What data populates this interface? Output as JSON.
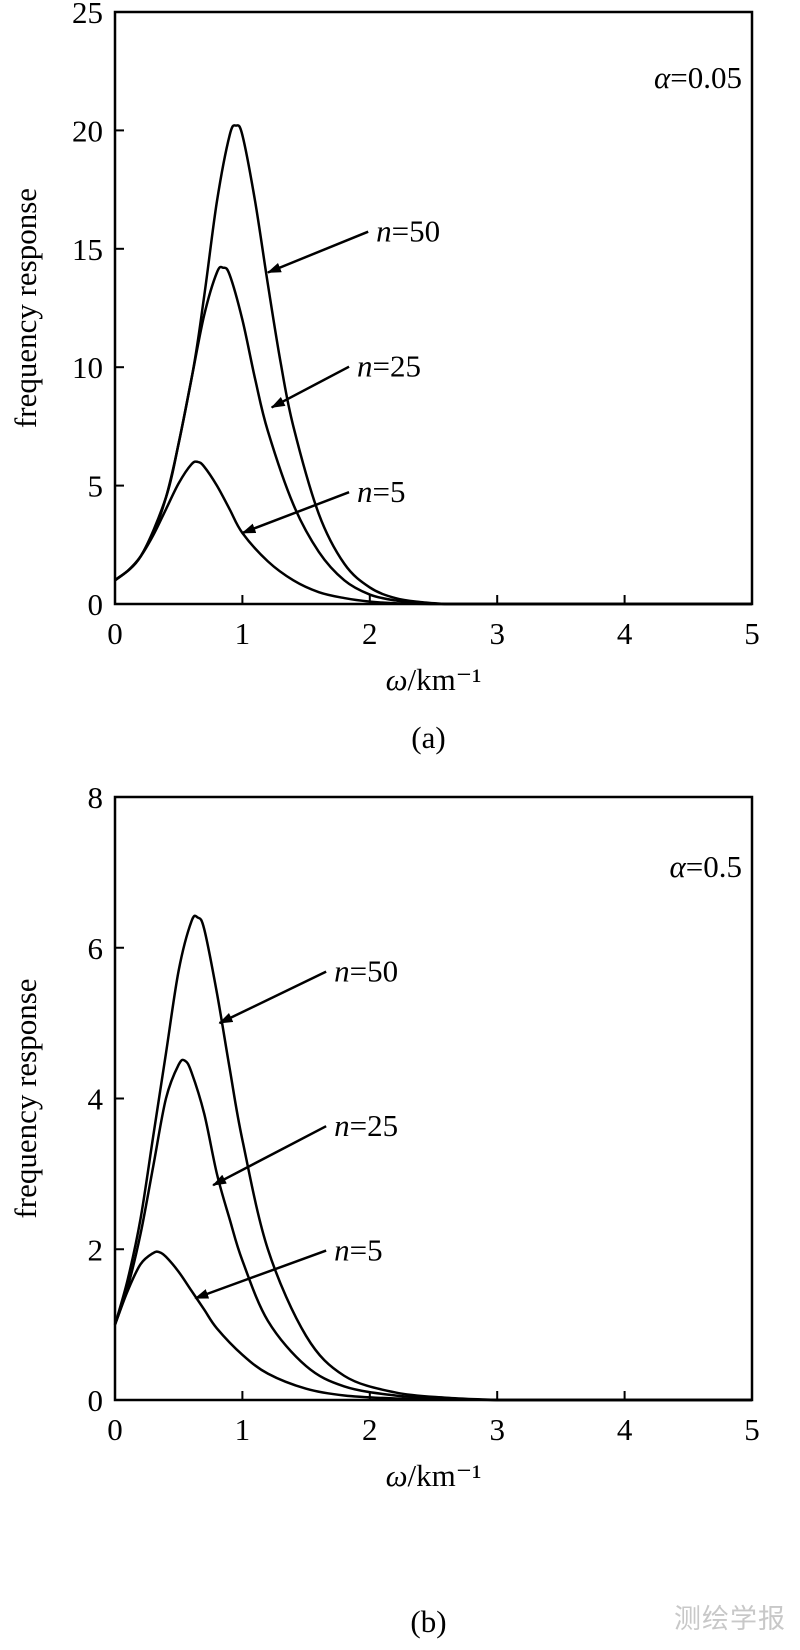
{
  "watermark": "测绘学报",
  "chart_data": [
    {
      "type": "line",
      "panel_label": "(a)",
      "annotation": "α=0.05",
      "ylabel": "frequency response",
      "xlabel": "ω/km⁻¹",
      "xlim": [
        0,
        5
      ],
      "ylim": [
        0,
        25
      ],
      "xticks": [
        "0",
        "1",
        "2",
        "3",
        "4",
        "5"
      ],
      "yticks": [
        "0",
        "5",
        "10",
        "15",
        "20",
        "25"
      ],
      "grid": false,
      "series": [
        {
          "name": "n=5",
          "x": [
            0,
            0.1,
            0.2,
            0.3,
            0.4,
            0.5,
            0.6,
            0.65,
            0.7,
            0.8,
            0.9,
            1.0,
            1.2,
            1.4,
            1.6,
            1.8,
            2.0,
            2.2,
            2.5
          ],
          "y": [
            1.0,
            1.4,
            2.0,
            2.9,
            4.0,
            5.1,
            5.9,
            6.0,
            5.8,
            5.0,
            4.0,
            3.0,
            1.8,
            1.0,
            0.5,
            0.25,
            0.1,
            0.03,
            0
          ]
        },
        {
          "name": "n=25",
          "x": [
            0,
            0.2,
            0.4,
            0.5,
            0.6,
            0.7,
            0.8,
            0.85,
            0.9,
            1.0,
            1.1,
            1.2,
            1.4,
            1.6,
            1.8,
            2.0,
            2.2,
            2.4,
            2.6
          ],
          "y": [
            1.0,
            2.0,
            4.5,
            6.8,
            9.5,
            12.2,
            14.0,
            14.2,
            13.9,
            12.0,
            9.5,
            7.3,
            4.2,
            2.2,
            1.0,
            0.4,
            0.15,
            0.05,
            0
          ]
        },
        {
          "name": "n=50",
          "x": [
            0,
            0.2,
            0.4,
            0.6,
            0.7,
            0.8,
            0.9,
            0.95,
            1.0,
            1.1,
            1.2,
            1.3,
            1.4,
            1.6,
            1.8,
            2.0,
            2.2,
            2.4,
            2.6
          ],
          "y": [
            1.0,
            2.0,
            4.5,
            9.5,
            13.0,
            17.0,
            19.8,
            20.2,
            19.8,
            17.0,
            13.5,
            10.2,
            7.5,
            3.8,
            1.7,
            0.7,
            0.25,
            0.08,
            0
          ]
        }
      ],
      "callouts": [
        {
          "series": "n=50",
          "label": "n=50",
          "point": [
            1.2,
            14.0
          ],
          "text_at": [
            2.05,
            15.3
          ]
        },
        {
          "series": "n=25",
          "label": "n=25",
          "point": [
            1.23,
            8.3
          ],
          "text_at": [
            1.9,
            9.6
          ]
        },
        {
          "series": "n=5",
          "label": "n=5",
          "point": [
            1.0,
            3.0
          ],
          "text_at": [
            1.9,
            4.3
          ]
        }
      ]
    },
    {
      "type": "line",
      "panel_label": "(b)",
      "annotation": "α=0.5",
      "ylabel": "frequency response",
      "xlabel": "ω/km⁻¹",
      "xlim": [
        0,
        5
      ],
      "ylim": [
        0,
        8
      ],
      "xticks": [
        "0",
        "1",
        "2",
        "3",
        "4",
        "5"
      ],
      "yticks": [
        "0",
        "2",
        "4",
        "6",
        "8"
      ],
      "grid": false,
      "series": [
        {
          "name": "n=5",
          "x": [
            0,
            0.1,
            0.2,
            0.3,
            0.35,
            0.4,
            0.5,
            0.6,
            0.7,
            0.8,
            1.0,
            1.2,
            1.5,
            1.8,
            2.2,
            2.6,
            3.0
          ],
          "y": [
            1.0,
            1.45,
            1.8,
            1.95,
            1.96,
            1.9,
            1.7,
            1.45,
            1.2,
            0.95,
            0.6,
            0.35,
            0.15,
            0.06,
            0.02,
            0.01,
            0
          ]
        },
        {
          "name": "n=25",
          "x": [
            0,
            0.1,
            0.2,
            0.3,
            0.4,
            0.5,
            0.55,
            0.6,
            0.7,
            0.8,
            0.9,
            1.0,
            1.2,
            1.5,
            1.8,
            2.2,
            2.6,
            3.0
          ],
          "y": [
            1.0,
            1.5,
            2.2,
            3.1,
            4.0,
            4.45,
            4.5,
            4.35,
            3.8,
            3.0,
            2.4,
            1.85,
            1.05,
            0.45,
            0.18,
            0.06,
            0.02,
            0
          ]
        },
        {
          "name": "n=50",
          "x": [
            0,
            0.1,
            0.2,
            0.3,
            0.4,
            0.5,
            0.6,
            0.65,
            0.7,
            0.8,
            0.9,
            1.0,
            1.2,
            1.5,
            1.8,
            2.2,
            2.6,
            3.0
          ],
          "y": [
            1.0,
            1.6,
            2.4,
            3.5,
            4.6,
            5.7,
            6.35,
            6.4,
            6.25,
            5.4,
            4.4,
            3.45,
            2.0,
            0.85,
            0.32,
            0.1,
            0.03,
            0
          ]
        }
      ],
      "callouts": [
        {
          "series": "n=50",
          "label": "n=50",
          "point": [
            0.82,
            5.0
          ],
          "text_at": [
            1.72,
            5.55
          ]
        },
        {
          "series": "n=25",
          "label": "n=25",
          "point": [
            0.77,
            2.85
          ],
          "text_at": [
            1.72,
            3.5
          ]
        },
        {
          "series": "n=5",
          "label": "n=5",
          "point": [
            0.63,
            1.35
          ],
          "text_at": [
            1.72,
            1.85
          ]
        }
      ]
    }
  ]
}
